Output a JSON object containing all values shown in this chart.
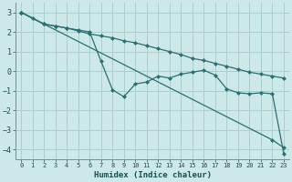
{
  "xlabel": "Humidex (Indice chaleur)",
  "xlim": [
    -0.5,
    23.5
  ],
  "ylim": [
    -4.5,
    3.5
  ],
  "xticks": [
    0,
    1,
    2,
    3,
    4,
    5,
    6,
    7,
    8,
    9,
    10,
    11,
    12,
    13,
    14,
    15,
    16,
    17,
    18,
    19,
    20,
    21,
    22,
    23
  ],
  "yticks": [
    -4,
    -3,
    -2,
    -1,
    0,
    1,
    2,
    3
  ],
  "background_color": "#cce8e8",
  "grid_color": "#aacfcf",
  "line_color": "#2a7070",
  "series": [
    {
      "x": [
        0,
        1,
        2,
        22,
        23
      ],
      "y": [
        3.0,
        2.7,
        2.4,
        -3.5,
        -3.9
      ]
    },
    {
      "x": [
        0,
        2,
        3,
        4,
        5,
        6,
        7,
        8,
        9,
        10,
        11,
        12,
        13,
        14,
        15,
        16,
        17,
        18,
        19,
        20,
        21,
        22,
        23
      ],
      "y": [
        3.0,
        2.4,
        2.3,
        2.2,
        2.1,
        2.0,
        0.5,
        -0.95,
        -1.3,
        -0.65,
        -0.55,
        -0.25,
        -0.35,
        -0.15,
        -0.05,
        0.05,
        -0.2,
        -0.9,
        -1.1,
        -1.15,
        -1.1,
        -1.15,
        -4.2
      ]
    },
    {
      "x": [
        0,
        2,
        3,
        4,
        5,
        6,
        7,
        8,
        9,
        10,
        11,
        12,
        13,
        14,
        15,
        16,
        17,
        18,
        19,
        20,
        21,
        22,
        23
      ],
      "y": [
        3.0,
        2.4,
        2.3,
        2.2,
        2.05,
        1.9,
        1.8,
        1.7,
        1.55,
        1.45,
        1.3,
        1.15,
        1.0,
        0.85,
        0.65,
        0.55,
        0.4,
        0.25,
        0.1,
        -0.05,
        -0.15,
        -0.25,
        -0.35
      ]
    }
  ]
}
